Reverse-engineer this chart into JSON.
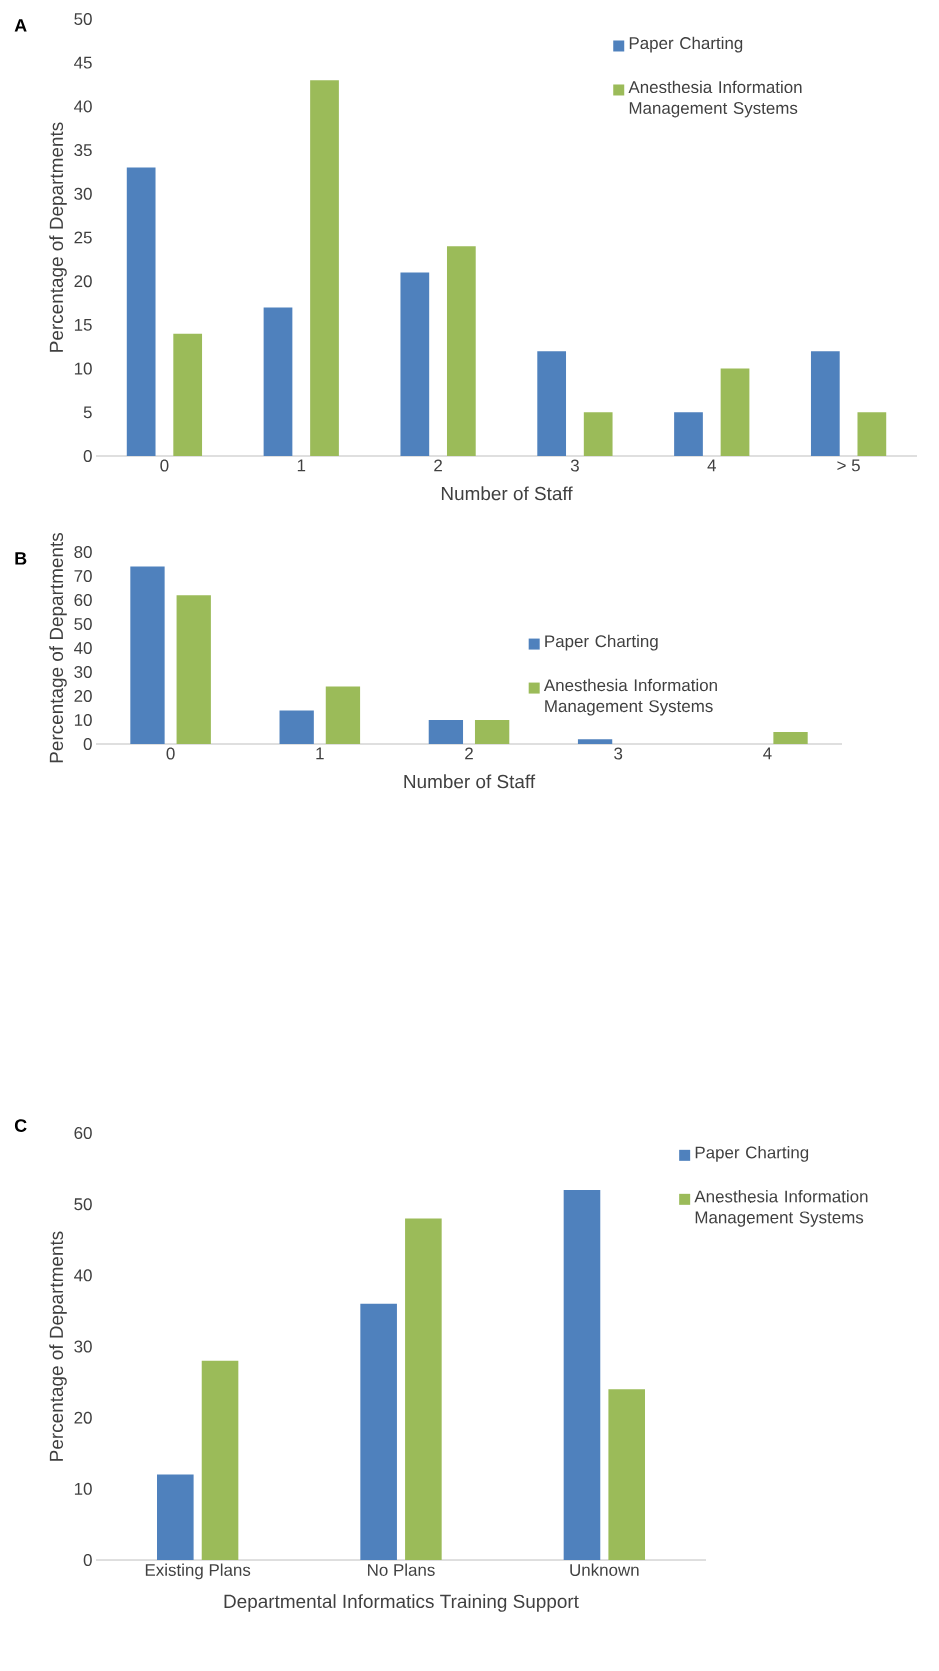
{
  "chart_data": [
    {
      "type": "bar",
      "title": "A",
      "xlabel": "Number of Staff",
      "ylabel": "Percentage of Departments",
      "categories": [
        "0",
        "1",
        "2",
        "3",
        "4",
        "> 5"
      ],
      "ylim": [
        0,
        50
      ],
      "yticks": [
        0,
        5,
        10,
        15,
        20,
        25,
        30,
        35,
        40,
        45,
        50
      ],
      "grid": false,
      "legend": "top right",
      "series": [
        {
          "name": "Paper Charting",
          "color": "#4f81bd",
          "values": [
            33,
            17,
            21,
            12,
            5,
            12
          ]
        },
        {
          "name": "Anesthesia Information Management Systems",
          "color": "#9bbb59",
          "values": [
            14,
            43,
            24,
            5,
            10,
            5
          ]
        }
      ]
    },
    {
      "type": "bar",
      "title": "B",
      "xlabel": "Number of Staff",
      "ylabel": "Percentage of Departments",
      "categories": [
        "0",
        "1",
        "2",
        "3",
        "4"
      ],
      "ylim": [
        0,
        80
      ],
      "yticks": [
        0,
        10,
        20,
        30,
        40,
        50,
        60,
        70,
        80
      ],
      "grid": false,
      "legend": "right",
      "series": [
        {
          "name": "Paper Charting",
          "color": "#4f81bd",
          "values": [
            74,
            14,
            10,
            2,
            0
          ]
        },
        {
          "name": "Anesthesia Information Management Systems",
          "color": "#9bbb59",
          "values": [
            62,
            24,
            10,
            0,
            5
          ]
        }
      ]
    },
    {
      "type": "bar",
      "title": "C",
      "xlabel": "Departmental Informatics Training Support",
      "ylabel": "Percentage of Departments",
      "categories": [
        "Existing Plans",
        "No Plans",
        "Unknown"
      ],
      "ylim": [
        0,
        60
      ],
      "yticks": [
        0,
        10,
        20,
        30,
        40,
        50,
        60
      ],
      "grid": false,
      "legend": "top right",
      "series": [
        {
          "name": "Paper Charting",
          "color": "#4f81bd",
          "values": [
            12,
            36,
            52
          ]
        },
        {
          "name": "Anesthesia Information Management Systems",
          "color": "#9bbb59",
          "values": [
            28,
            48,
            24
          ]
        }
      ]
    }
  ]
}
